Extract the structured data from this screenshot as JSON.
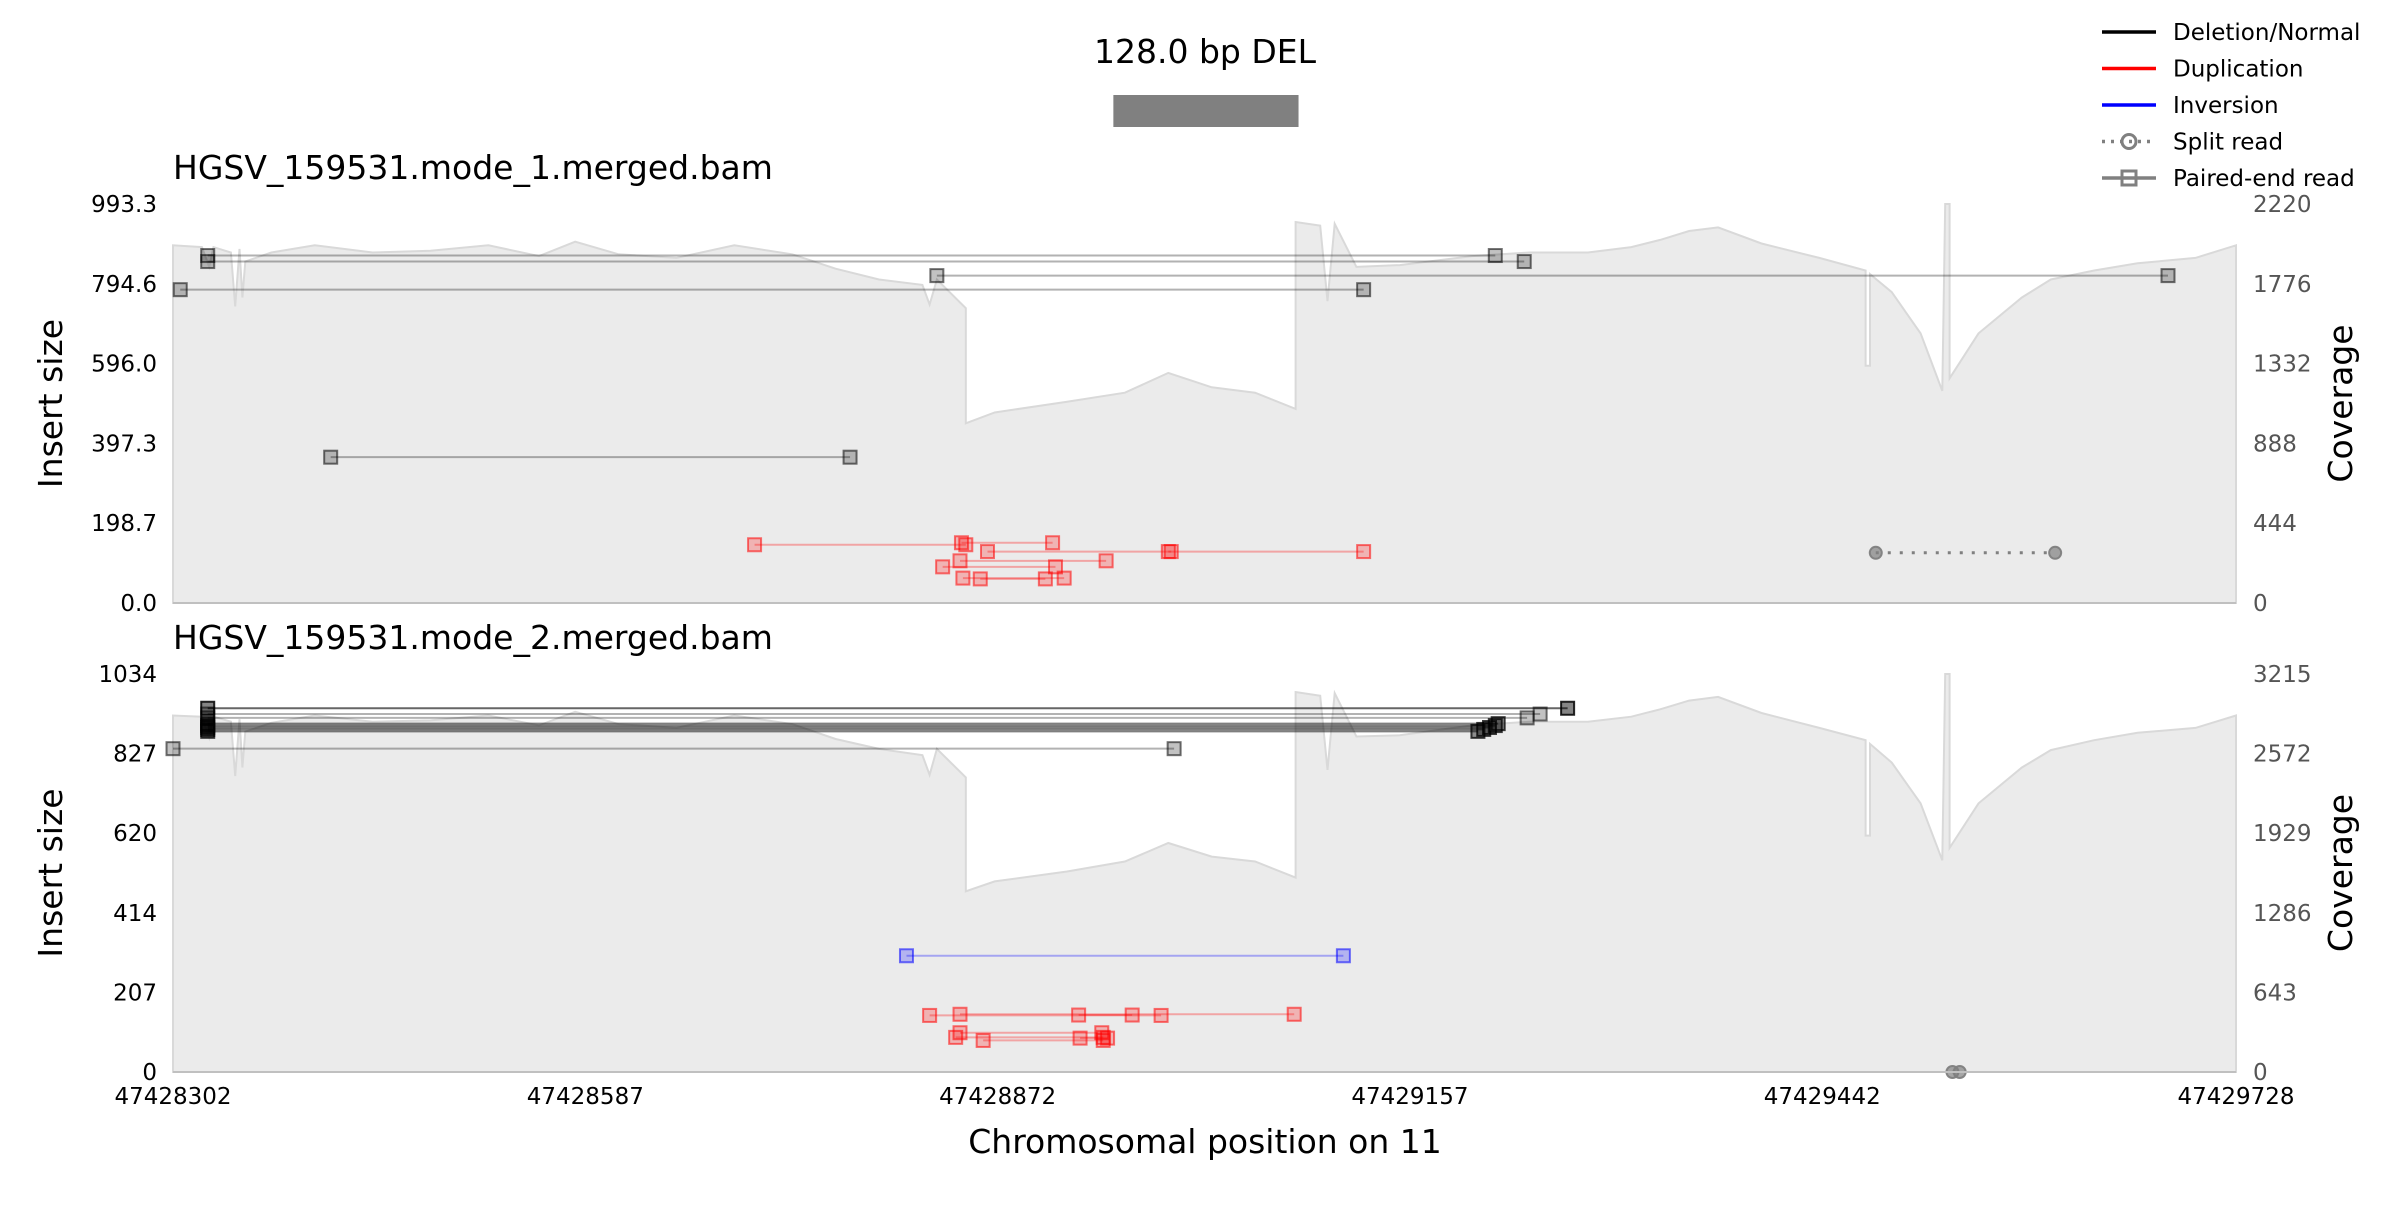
{
  "chart_data": {
    "type": "genome_track",
    "title": "128.0 bp DEL",
    "xlabel": "Chromosomal position on 11",
    "xlim": [
      47428302,
      47429728
    ],
    "xticks": [
      47428302,
      47428587,
      47428872,
      47429157,
      47429442,
      47429728
    ],
    "event": {
      "start": 47428952,
      "end": 47429080,
      "color": "#808080"
    },
    "legend": {
      "placement": "top-right",
      "entries": [
        {
          "label": "Deletion/Normal",
          "style": "line",
          "color": "#000000"
        },
        {
          "label": "Duplication",
          "style": "line",
          "color": "#ff0000"
        },
        {
          "label": "Inversion",
          "style": "line",
          "color": "#0000ff"
        },
        {
          "label": "Split read",
          "style": "dotted-circle",
          "color": "#808080"
        },
        {
          "label": "Paired-end read",
          "style": "line-square",
          "color": "#808080"
        }
      ]
    },
    "colors": {
      "deletion": "#000000",
      "duplication": "#ff0000",
      "inversion": "#0000ff",
      "split": "#808080",
      "coverage_fill": "#ebebeb",
      "coverage_line": "#d9d9d9"
    },
    "panels": [
      {
        "title": "HGSV_159531.mode_1.merged.bam",
        "ylabel": "Insert size",
        "y2label": "Coverage",
        "ylim": [
          0,
          993.3
        ],
        "yticks": [
          "993.3",
          "794.6",
          "596.0",
          "397.3",
          "198.7",
          "0.0"
        ],
        "y2lim": [
          0,
          2220
        ],
        "y2ticks": [
          "2220",
          "1776",
          "1332",
          "888",
          "444",
          "0"
        ],
        "coverage": [
          [
            47428302,
            1990
          ],
          [
            47428322,
            1980
          ],
          [
            47428327,
            1870
          ],
          [
            47428330,
            1980
          ],
          [
            47428342,
            1950
          ],
          [
            47428345,
            1650
          ],
          [
            47428348,
            1970
          ],
          [
            47428348,
            1970
          ],
          [
            47428350,
            1700
          ],
          [
            47428352,
            1900
          ],
          [
            47428370,
            1950
          ],
          [
            47428400,
            1990
          ],
          [
            47428440,
            1950
          ],
          [
            47428480,
            1960
          ],
          [
            47428520,
            1990
          ],
          [
            47428555,
            1930
          ],
          [
            47428580,
            2010
          ],
          [
            47428610,
            1940
          ],
          [
            47428650,
            1920
          ],
          [
            47428690,
            1990
          ],
          [
            47428730,
            1940
          ],
          [
            47428760,
            1860
          ],
          [
            47428790,
            1800
          ],
          [
            47428820,
            1770
          ],
          [
            47428825,
            1660
          ],
          [
            47428830,
            1800
          ],
          [
            47428850,
            1640
          ],
          [
            47428850,
            1000
          ],
          [
            47428870,
            1060
          ],
          [
            47428920,
            1120
          ],
          [
            47428960,
            1170
          ],
          [
            47428990,
            1280
          ],
          [
            47429020,
            1200
          ],
          [
            47429050,
            1170
          ],
          [
            47429078,
            1080
          ],
          [
            47429078,
            2120
          ],
          [
            47429095,
            2100
          ],
          [
            47429100,
            1680
          ],
          [
            47429105,
            2110
          ],
          [
            47429120,
            1870
          ],
          [
            47429150,
            1880
          ],
          [
            47429200,
            1930
          ],
          [
            47429240,
            1950
          ],
          [
            47429280,
            1950
          ],
          [
            47429310,
            1980
          ],
          [
            47429330,
            2020
          ],
          [
            47429350,
            2070
          ],
          [
            47429370,
            2090
          ],
          [
            47429400,
            2000
          ],
          [
            47429440,
            1920
          ],
          [
            47429472,
            1850
          ],
          [
            47429472,
            1320
          ],
          [
            47429475,
            1320
          ],
          [
            47429475,
            1830
          ],
          [
            47429490,
            1730
          ],
          [
            47429510,
            1500
          ],
          [
            47429525,
            1180
          ],
          [
            47429527,
            2220
          ],
          [
            47429530,
            2220
          ],
          [
            47429530,
            1250
          ],
          [
            47429550,
            1500
          ],
          [
            47429580,
            1700
          ],
          [
            47429600,
            1800
          ],
          [
            47429630,
            1850
          ],
          [
            47429660,
            1890
          ],
          [
            47429700,
            1920
          ],
          [
            47429728,
            1990
          ]
        ],
        "pairs": [
          {
            "type": "deletion",
            "x1": 47428326,
            "x2": 47429216,
            "y": 865,
            "alpha": 0.3
          },
          {
            "type": "deletion",
            "x1": 47428326,
            "x2": 47429236,
            "y": 850,
            "alpha": 0.3
          },
          {
            "type": "deletion",
            "x1": 47428830,
            "x2": 47429681,
            "y": 815,
            "alpha": 0.3
          },
          {
            "type": "deletion",
            "x1": 47428307,
            "x2": 47429125,
            "y": 780,
            "alpha": 0.3
          },
          {
            "type": "deletion",
            "x1": 47428411,
            "x2": 47428770,
            "y": 363,
            "alpha": 0.3
          },
          {
            "type": "duplication",
            "x1": 47428704,
            "x2": 47428850,
            "y": 145,
            "alpha": 0.3
          },
          {
            "type": "duplication",
            "x1": 47428865,
            "x2": 47429125,
            "y": 128,
            "alpha": 0.3
          },
          {
            "type": "duplication",
            "x1": 47428846,
            "x2": 47428947,
            "y": 105,
            "alpha": 0.3
          },
          {
            "type": "duplication",
            "x1": 47428834,
            "x2": 47428912,
            "y": 90,
            "alpha": 0.3
          },
          {
            "type": "duplication",
            "x1": 47428848,
            "x2": 47428918,
            "y": 62,
            "alpha": 0.3
          },
          {
            "type": "duplication",
            "x1": 47428860,
            "x2": 47428905,
            "y": 60,
            "alpha": 0.3
          },
          {
            "type": "duplication",
            "x1": 47428847,
            "x2": 47428910,
            "y": 150,
            "alpha": 0.3
          },
          {
            "type": "duplication",
            "x1": 47428990,
            "x2": 47428992,
            "y": 128,
            "alpha": 0.3
          }
        ],
        "splits": [
          {
            "x1": 47429479,
            "x2": 47429603,
            "y": 125
          }
        ]
      },
      {
        "title": "HGSV_159531.mode_2.merged.bam",
        "ylabel": "Insert size",
        "y2label": "Coverage",
        "ylim": [
          0,
          1034
        ],
        "yticks": [
          "1034",
          "827",
          "620",
          "414",
          "207",
          "0"
        ],
        "y2lim": [
          0,
          3215
        ],
        "y2ticks": [
          "3215",
          "2572",
          "1929",
          "1286",
          "643",
          "0"
        ],
        "coverage": [
          [
            47428302,
            2880
          ],
          [
            47428322,
            2870
          ],
          [
            47428327,
            2700
          ],
          [
            47428330,
            2870
          ],
          [
            47428342,
            2830
          ],
          [
            47428345,
            2390
          ],
          [
            47428348,
            2850
          ],
          [
            47428348,
            2850
          ],
          [
            47428350,
            2460
          ],
          [
            47428352,
            2750
          ],
          [
            47428370,
            2820
          ],
          [
            47428400,
            2880
          ],
          [
            47428440,
            2830
          ],
          [
            47428480,
            2840
          ],
          [
            47428520,
            2880
          ],
          [
            47428555,
            2800
          ],
          [
            47428580,
            2910
          ],
          [
            47428610,
            2810
          ],
          [
            47428650,
            2780
          ],
          [
            47428690,
            2880
          ],
          [
            47428730,
            2810
          ],
          [
            47428760,
            2690
          ],
          [
            47428790,
            2610
          ],
          [
            47428820,
            2560
          ],
          [
            47428825,
            2400
          ],
          [
            47428830,
            2610
          ],
          [
            47428850,
            2380
          ],
          [
            47428850,
            1460
          ],
          [
            47428870,
            1540
          ],
          [
            47428920,
            1620
          ],
          [
            47428960,
            1700
          ],
          [
            47428990,
            1850
          ],
          [
            47429020,
            1740
          ],
          [
            47429050,
            1700
          ],
          [
            47429078,
            1570
          ],
          [
            47429078,
            3070
          ],
          [
            47429095,
            3040
          ],
          [
            47429100,
            2440
          ],
          [
            47429105,
            3060
          ],
          [
            47429120,
            2710
          ],
          [
            47429150,
            2720
          ],
          [
            47429200,
            2800
          ],
          [
            47429240,
            2830
          ],
          [
            47429280,
            2830
          ],
          [
            47429310,
            2870
          ],
          [
            47429330,
            2930
          ],
          [
            47429350,
            3000
          ],
          [
            47429370,
            3030
          ],
          [
            47429400,
            2900
          ],
          [
            47429440,
            2780
          ],
          [
            47429472,
            2680
          ],
          [
            47429472,
            1910
          ],
          [
            47429475,
            1910
          ],
          [
            47429475,
            2650
          ],
          [
            47429490,
            2500
          ],
          [
            47429510,
            2170
          ],
          [
            47429525,
            1710
          ],
          [
            47429527,
            3215
          ],
          [
            47429530,
            3215
          ],
          [
            47429530,
            1810
          ],
          [
            47429550,
            2170
          ],
          [
            47429580,
            2460
          ],
          [
            47429600,
            2600
          ],
          [
            47429630,
            2680
          ],
          [
            47429660,
            2740
          ],
          [
            47429700,
            2780
          ],
          [
            47429728,
            2880
          ]
        ],
        "pairs": [
          {
            "type": "deletion",
            "x1": 47428326,
            "x2": 47429266,
            "y": 945,
            "alpha": 0.6
          },
          {
            "type": "deletion",
            "x1": 47428326,
            "x2": 47429247,
            "y": 930,
            "alpha": 0.3
          },
          {
            "type": "deletion",
            "x1": 47428326,
            "x2": 47429238,
            "y": 920,
            "alpha": 0.3
          },
          {
            "type": "deletion",
            "x1": 47428326,
            "x2": 47429218,
            "y": 905,
            "alpha": 0.5
          },
          {
            "type": "deletion",
            "x1": 47428326,
            "x2": 47429216,
            "y": 900,
            "alpha": 0.5
          },
          {
            "type": "deletion",
            "x1": 47428326,
            "x2": 47429212,
            "y": 895,
            "alpha": 0.5
          },
          {
            "type": "deletion",
            "x1": 47428326,
            "x2": 47429208,
            "y": 890,
            "alpha": 0.5
          },
          {
            "type": "deletion",
            "x1": 47428326,
            "x2": 47429204,
            "y": 885,
            "alpha": 0.5
          },
          {
            "type": "deletion",
            "x1": 47428302,
            "x2": 47428994,
            "y": 840,
            "alpha": 0.3
          },
          {
            "type": "inversion",
            "x1": 47428809,
            "x2": 47429111,
            "y": 302,
            "alpha": 0.3
          },
          {
            "type": "duplication",
            "x1": 47428846,
            "x2": 47429077,
            "y": 150,
            "alpha": 0.3
          },
          {
            "type": "duplication",
            "x1": 47428825,
            "x2": 47428985,
            "y": 147,
            "alpha": 0.3
          },
          {
            "type": "duplication",
            "x1": 47428846,
            "x2": 47428944,
            "y": 102,
            "alpha": 0.3
          },
          {
            "type": "duplication",
            "x1": 47428843,
            "x2": 47428945,
            "y": 90,
            "alpha": 0.3
          },
          {
            "type": "duplication",
            "x1": 47428862,
            "x2": 47428945,
            "y": 82,
            "alpha": 0.3
          },
          {
            "type": "duplication",
            "x1": 47428928,
            "x2": 47428965,
            "y": 148,
            "alpha": 0.3
          },
          {
            "type": "duplication",
            "x1": 47428929,
            "x2": 47428948,
            "y": 88,
            "alpha": 0.3
          }
        ],
        "splits": [
          {
            "x1": 47429532,
            "x2": 47429537,
            "y": 0
          }
        ]
      }
    ]
  }
}
